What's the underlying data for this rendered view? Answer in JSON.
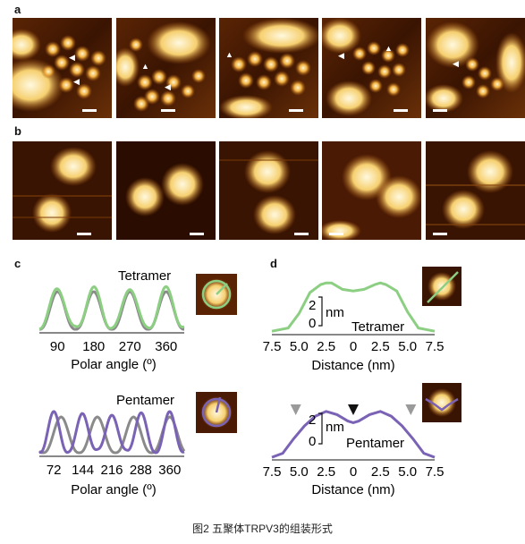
{
  "figure": {
    "caption": "图2 五聚体TRPV3的组装形式",
    "panel_labels": {
      "a": "a",
      "b": "b",
      "c": "c",
      "d": "d"
    }
  },
  "colors": {
    "afm_dark": "#2a0c00",
    "afm_mid": "#b0600c",
    "afm_bright": "#fff3c9",
    "green": "#8ccf83",
    "gray": "#8a8a8a",
    "purple": "#7a62b5",
    "marker_gray": "#9a9a9a",
    "marker_black": "#111111"
  },
  "chart_data": [
    {
      "panel": "c",
      "type": "line",
      "label": "Tetramer",
      "xlabel": "Polar angle (º)",
      "ylabel": "",
      "x_ticks": [
        "90",
        "180",
        "270",
        "360"
      ],
      "xlim": [
        45,
        405
      ],
      "series": [
        {
          "color": "#8ccf83",
          "peaks_deg": [
            90,
            180,
            270,
            360
          ]
        },
        {
          "color": "#8a8a8a",
          "peaks_deg": [
            90,
            180,
            270,
            360
          ]
        }
      ]
    },
    {
      "panel": "c",
      "type": "line",
      "label": "Pentamer",
      "xlabel": "Polar angle (º)",
      "ylabel": "",
      "x_ticks": [
        "72",
        "144",
        "216",
        "288",
        "360"
      ],
      "xlim": [
        36,
        396
      ],
      "series": [
        {
          "color": "#7a62b5",
          "peaks_deg": [
            72,
            144,
            216,
            288,
            360
          ]
        },
        {
          "color": "#8a8a8a",
          "peaks_deg": [
            90,
            180,
            270,
            360
          ]
        }
      ]
    },
    {
      "panel": "d",
      "type": "line",
      "label": "Tetramer",
      "xlabel": "Distance (nm)",
      "scale_bar": {
        "top": "2",
        "bottom": "0",
        "unit": "nm"
      },
      "x_ticks": [
        "7.5",
        "5.0",
        "2.5",
        "0",
        "2.5",
        "5.0",
        "7.5"
      ],
      "x": [
        -7.5,
        -6,
        -5,
        -4,
        -3,
        -2.5,
        -2,
        -1,
        0,
        1,
        2,
        2.5,
        3,
        4,
        5,
        6,
        7.5
      ],
      "y": [
        0.1,
        0.3,
        1.2,
        2.5,
        3.0,
        3.1,
        3.1,
        2.7,
        2.6,
        2.7,
        3.0,
        3.1,
        3.0,
        2.6,
        1.3,
        0.3,
        0.1
      ],
      "color": "#8ccf83"
    },
    {
      "panel": "d",
      "type": "line",
      "label": "Pentamer",
      "xlabel": "Distance (nm)",
      "scale_bar": {
        "top": "2",
        "bottom": "0",
        "unit": "nm"
      },
      "x_ticks": [
        "7.5",
        "5.0",
        "2.5",
        "0",
        "2.5",
        "5.0",
        "7.5"
      ],
      "x": [
        -7.5,
        -6.5,
        -5.5,
        -4.5,
        -3.5,
        -2.5,
        -1.5,
        -0.5,
        0,
        0.5,
        1.5,
        2.5,
        3.5,
        4.5,
        5.5,
        6.5,
        7.5
      ],
      "y": [
        0.05,
        0.3,
        1.2,
        2.0,
        2.6,
        2.9,
        2.7,
        2.3,
        2.2,
        2.3,
        2.7,
        2.9,
        2.6,
        2.0,
        1.2,
        0.3,
        0.05
      ],
      "color": "#7a62b5",
      "markers": [
        {
          "x": -5.3,
          "color": "#9a9a9a"
        },
        {
          "x": 0,
          "color": "#111111"
        },
        {
          "x": 5.3,
          "color": "#9a9a9a"
        }
      ]
    }
  ]
}
